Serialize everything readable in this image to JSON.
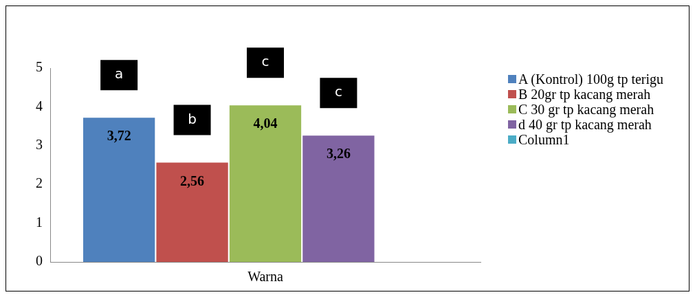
{
  "chart_data": {
    "type": "bar",
    "categories": [
      "Warna"
    ],
    "series": [
      {
        "name": "A (Kontrol) 100g tp terigu",
        "color": "#4f81bd",
        "values": [
          3.72
        ],
        "value_labels": [
          "3,72"
        ]
      },
      {
        "name": "B  20gr tp kacang merah",
        "color": "#c0504d",
        "values": [
          2.56
        ],
        "value_labels": [
          "2,56"
        ]
      },
      {
        "name": "C 30 gr tp kacang merah",
        "color": "#9bbb59",
        "values": [
          4.04
        ],
        "value_labels": [
          "4,04"
        ]
      },
      {
        "name": "d 40 gr tp kacang merah",
        "color": "#8064a2",
        "values": [
          3.26
        ],
        "value_labels": [
          "3,26"
        ]
      },
      {
        "name": "Column1",
        "color": "#4bacc6",
        "values": [
          null
        ]
      }
    ],
    "annotations": [
      "a",
      "b",
      "c",
      "c"
    ],
    "ylim": [
      0,
      5
    ],
    "yticks": [
      0,
      1,
      2,
      3,
      4,
      5
    ],
    "grid": false,
    "legend": "right"
  }
}
